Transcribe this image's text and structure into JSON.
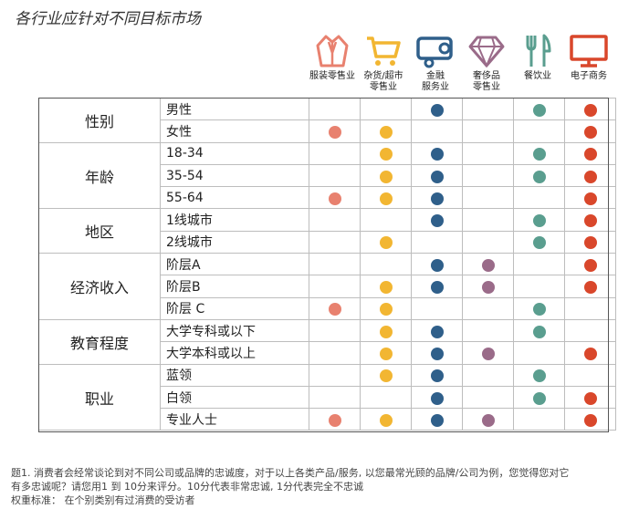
{
  "title": "各行业应针对不同目标市场",
  "chart_data": {
    "type": "table",
    "columns": [
      {
        "label": "服装零售业",
        "color": "#e8816f",
        "icon": "jacket-icon"
      },
      {
        "label": "杂货/超市\n零售业",
        "color": "#f2b632",
        "icon": "shopping-cart-icon"
      },
      {
        "label": "金融\n服务业",
        "color": "#2f5f8a",
        "icon": "wallet-icon"
      },
      {
        "label": "奢侈品\n零售业",
        "color": "#9a6b89",
        "icon": "diamond-icon"
      },
      {
        "label": "餐饮业",
        "color": "#5a9e8f",
        "icon": "fork-knife-icon"
      },
      {
        "label": "电子商务",
        "color": "#d9472b",
        "icon": "monitor-icon"
      }
    ],
    "groups": [
      {
        "category": "性别",
        "rows": [
          {
            "label": "男性",
            "values": [
              0,
              0,
              1,
              0,
              1,
              1
            ]
          },
          {
            "label": "女性",
            "values": [
              1,
              1,
              0,
              0,
              0,
              1
            ]
          }
        ]
      },
      {
        "category": "年龄",
        "rows": [
          {
            "label": "18-34",
            "values": [
              0,
              1,
              1,
              0,
              1,
              1
            ]
          },
          {
            "label": "35-54",
            "values": [
              0,
              1,
              1,
              0,
              1,
              1
            ]
          },
          {
            "label": "55-64",
            "values": [
              1,
              1,
              1,
              0,
              0,
              1
            ]
          }
        ]
      },
      {
        "category": "地区",
        "rows": [
          {
            "label": "1线城市",
            "values": [
              0,
              0,
              1,
              0,
              1,
              1
            ]
          },
          {
            "label": "2线城市",
            "values": [
              0,
              1,
              0,
              0,
              1,
              1
            ]
          }
        ]
      },
      {
        "category": "经济收入",
        "rows": [
          {
            "label": "阶层A",
            "values": [
              0,
              0,
              1,
              1,
              0,
              1
            ]
          },
          {
            "label": "阶层B",
            "values": [
              0,
              1,
              1,
              1,
              0,
              1
            ]
          },
          {
            "label": "阶层 C",
            "values": [
              1,
              1,
              0,
              0,
              1,
              0
            ]
          }
        ]
      },
      {
        "category": "教育程度",
        "rows": [
          {
            "label": "大学专科或以下",
            "values": [
              0,
              1,
              1,
              0,
              1,
              0
            ]
          },
          {
            "label": "大学本科或以上",
            "values": [
              0,
              1,
              1,
              1,
              0,
              1
            ]
          }
        ]
      },
      {
        "category": "职业",
        "rows": [
          {
            "label": "蓝领",
            "values": [
              0,
              1,
              1,
              0,
              1,
              0
            ]
          },
          {
            "label": "白领",
            "values": [
              0,
              0,
              1,
              0,
              1,
              1
            ]
          },
          {
            "label": "专业人士",
            "values": [
              1,
              1,
              1,
              1,
              0,
              1
            ]
          }
        ]
      }
    ]
  },
  "footnote": {
    "line1": "题1. 消费者会经常谈论到对不同公司或品牌的忠诚度，对于以上各类产品/服务, 以您最常光顾的品牌/公司为例，您觉得您对它",
    "line2": "有多忠诚呢？请您用1 到 10分来评分。10分代表非常忠诚, 1分代表完全不忠诚",
    "line3": "权重标准：  在个别类别有过消费的受访者"
  }
}
